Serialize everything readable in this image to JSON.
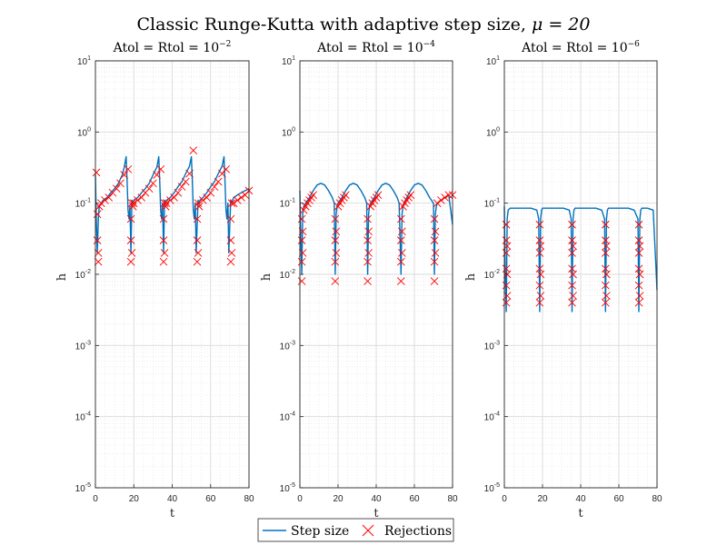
{
  "figure": {
    "title_text": "Classic Runge-Kutta with adaptive step size, ",
    "title_math": "μ = 20",
    "legend": {
      "line_label": "Step size",
      "marker_label": "Rejections"
    }
  },
  "colors": {
    "line": "#0072bd",
    "marker": "#ff0000",
    "grid": "#d9d9d9",
    "axis": "#262626"
  },
  "chart_data": [
    {
      "type": "line",
      "title_text": "Atol = Rtol = 10",
      "title_exp": "−2",
      "xlabel": "t",
      "ylabel": "h",
      "xlim": [
        0,
        80
      ],
      "ylim": [
        1e-05,
        10
      ],
      "yscale": "log",
      "grid": "on",
      "xticks": [
        "0",
        "20",
        "40",
        "60",
        "80"
      ],
      "yticks_exp": [
        "-5",
        "-4",
        "-3",
        "-2",
        "-1",
        "0",
        "1"
      ],
      "cycle_starts": [
        1,
        18.5,
        35.5,
        53,
        70.5
      ],
      "series": [
        {
          "name": "Step size",
          "x": [
            0,
            0.5,
            1,
            1.5,
            2,
            3,
            4,
            6,
            8,
            10,
            12,
            14,
            15,
            16,
            16.5,
            17,
            17.5,
            18,
            18.5,
            19,
            19.5,
            20,
            22,
            24,
            26,
            28,
            30,
            32,
            33,
            33.5,
            34,
            34.5,
            35,
            35.5,
            36,
            36.5,
            37,
            39,
            41,
            43,
            45,
            47,
            49,
            50,
            50.5,
            51,
            51.5,
            52,
            52.5,
            53,
            53.5,
            54,
            54.5,
            56,
            58,
            60,
            62,
            64,
            66,
            67,
            67.5,
            68,
            68.5,
            69,
            69.5,
            70,
            70.5,
            71,
            71.5,
            72,
            74,
            76,
            78,
            80
          ],
          "y": [
            0.25,
            0.05,
            0.02,
            0.06,
            0.09,
            0.1,
            0.11,
            0.12,
            0.14,
            0.16,
            0.19,
            0.25,
            0.32,
            0.45,
            0.2,
            0.08,
            0.06,
            0.09,
            0.02,
            0.11,
            0.1,
            0.11,
            0.12,
            0.14,
            0.16,
            0.19,
            0.25,
            0.32,
            0.45,
            0.2,
            0.08,
            0.06,
            0.1,
            0.02,
            0.11,
            0.1,
            0.11,
            0.12,
            0.14,
            0.17,
            0.2,
            0.26,
            0.33,
            0.45,
            0.2,
            0.08,
            0.06,
            0.1,
            0.02,
            0.05,
            0.11,
            0.1,
            0.11,
            0.12,
            0.14,
            0.17,
            0.2,
            0.26,
            0.33,
            0.45,
            0.2,
            0.08,
            0.06,
            0.1,
            0.02,
            0.05,
            0.11,
            0.1,
            0.11,
            0.12,
            0.13,
            0.14,
            0.15,
            0.16
          ]
        },
        {
          "name": "Rejections",
          "x": [
            0.5,
            1,
            1,
            1.5,
            1.5,
            2,
            3,
            5,
            7,
            9,
            11,
            13,
            15,
            17,
            18.5,
            18.5,
            18.5,
            19,
            19,
            19.5,
            20,
            22,
            24,
            26,
            28,
            30,
            32,
            34,
            35.5,
            35.5,
            35.5,
            36,
            36,
            36.5,
            37,
            39,
            41,
            43,
            45,
            47,
            49,
            51,
            53,
            53,
            53,
            53.5,
            53.5,
            54,
            56,
            58,
            60,
            62,
            64,
            66,
            68,
            70.5,
            70.5,
            70.5,
            71,
            71,
            72,
            74,
            76,
            78,
            80
          ],
          "y": [
            0.27,
            0.07,
            0.03,
            0.02,
            0.015,
            0.09,
            0.1,
            0.11,
            0.12,
            0.14,
            0.16,
            0.19,
            0.25,
            0.3,
            0.06,
            0.03,
            0.015,
            0.1,
            0.02,
            0.09,
            0.1,
            0.11,
            0.12,
            0.14,
            0.16,
            0.19,
            0.25,
            0.3,
            0.06,
            0.03,
            0.015,
            0.1,
            0.02,
            0.09,
            0.1,
            0.11,
            0.12,
            0.14,
            0.17,
            0.2,
            0.26,
            0.55,
            0.06,
            0.03,
            0.015,
            0.1,
            0.02,
            0.09,
            0.11,
            0.12,
            0.14,
            0.17,
            0.2,
            0.26,
            0.3,
            0.06,
            0.03,
            0.015,
            0.1,
            0.02,
            0.1,
            0.11,
            0.12,
            0.13,
            0.15
          ]
        }
      ]
    },
    {
      "type": "line",
      "title_text": "Atol = Rtol = 10",
      "title_exp": "−4",
      "xlabel": "t",
      "ylabel": "h",
      "xlim": [
        0,
        80
      ],
      "ylim": [
        1e-05,
        10
      ],
      "yscale": "log",
      "grid": "on",
      "xticks": [
        "0",
        "20",
        "40",
        "60",
        "80"
      ],
      "yticks_exp": [
        "-5",
        "-4",
        "-3",
        "-2",
        "-1",
        "0",
        "1"
      ],
      "cycle_starts": [
        1,
        18.5,
        35.5,
        53,
        70.5
      ],
      "series": [
        {
          "name": "Step size",
          "x": [
            0,
            0.5,
            1,
            1.5,
            2,
            3,
            5,
            7,
            9,
            11,
            13,
            15,
            17,
            18,
            18.5,
            19,
            19.5,
            20,
            22,
            24,
            26,
            28,
            30,
            32,
            34,
            35,
            35.5,
            36,
            36.5,
            37,
            39,
            41,
            43,
            45,
            47,
            49,
            51,
            52,
            53,
            53.5,
            54,
            54.5,
            56,
            58,
            60,
            62,
            64,
            66,
            68,
            70,
            70.5,
            71,
            71.5,
            72,
            74,
            76,
            78,
            80
          ],
          "y": [
            0.15,
            0.03,
            0.01,
            0.07,
            0.09,
            0.1,
            0.12,
            0.15,
            0.18,
            0.19,
            0.18,
            0.15,
            0.12,
            0.1,
            0.01,
            0.07,
            0.09,
            0.1,
            0.12,
            0.15,
            0.18,
            0.19,
            0.18,
            0.15,
            0.12,
            0.1,
            0.01,
            0.07,
            0.09,
            0.1,
            0.12,
            0.15,
            0.18,
            0.19,
            0.18,
            0.15,
            0.12,
            0.1,
            0.01,
            0.07,
            0.09,
            0.1,
            0.12,
            0.15,
            0.18,
            0.19,
            0.18,
            0.15,
            0.12,
            0.1,
            0.01,
            0.07,
            0.09,
            0.1,
            0.11,
            0.12,
            0.13,
            0.05
          ]
        },
        {
          "name": "Rejections",
          "x": [
            1,
            1,
            1,
            1,
            1.5,
            1.5,
            2,
            3,
            4,
            5,
            6,
            7,
            18.5,
            18.5,
            18.5,
            18.5,
            19,
            19,
            20,
            21,
            22,
            23,
            24,
            35.5,
            35.5,
            35.5,
            35.5,
            36,
            36,
            37,
            38,
            39,
            40,
            41,
            53,
            53,
            53,
            53,
            53.5,
            53.5,
            54,
            55,
            56,
            57,
            58,
            70.5,
            70.5,
            70.5,
            70.5,
            71,
            71,
            72,
            74,
            76,
            78,
            80
          ],
          "y": [
            0.06,
            0.03,
            0.015,
            0.008,
            0.04,
            0.02,
            0.08,
            0.09,
            0.1,
            0.11,
            0.12,
            0.13,
            0.06,
            0.03,
            0.015,
            0.008,
            0.04,
            0.02,
            0.09,
            0.1,
            0.11,
            0.12,
            0.13,
            0.06,
            0.03,
            0.015,
            0.008,
            0.04,
            0.02,
            0.09,
            0.1,
            0.11,
            0.12,
            0.13,
            0.06,
            0.03,
            0.015,
            0.008,
            0.04,
            0.02,
            0.09,
            0.1,
            0.11,
            0.12,
            0.13,
            0.06,
            0.03,
            0.015,
            0.008,
            0.04,
            0.02,
            0.1,
            0.11,
            0.12,
            0.13,
            0.13
          ]
        }
      ]
    },
    {
      "type": "line",
      "title_text": "Atol = Rtol = 10",
      "title_exp": "−6",
      "xlabel": "t",
      "ylabel": "h",
      "xlim": [
        0,
        80
      ],
      "ylim": [
        1e-05,
        10
      ],
      "yscale": "log",
      "grid": "on",
      "xticks": [
        "0",
        "20",
        "40",
        "60",
        "80"
      ],
      "yticks_exp": [
        "-5",
        "-4",
        "-3",
        "-2",
        "-1",
        "0",
        "1"
      ],
      "cycle_starts": [
        1,
        18.5,
        35.5,
        53,
        70.5
      ],
      "series": [
        {
          "name": "Step size",
          "x": [
            0,
            0.5,
            1,
            1.5,
            2,
            3,
            6,
            10,
            14,
            17,
            18,
            18.5,
            19,
            19.5,
            20,
            23,
            27,
            31,
            34,
            35,
            35.5,
            36,
            36.5,
            37,
            40,
            44,
            48,
            51,
            52.5,
            53,
            53.5,
            54,
            54.5,
            57,
            61,
            65,
            68,
            70,
            70.5,
            71,
            71.5,
            72,
            75,
            78,
            80
          ],
          "y": [
            0.09,
            0.01,
            0.003,
            0.06,
            0.08,
            0.085,
            0.085,
            0.085,
            0.085,
            0.08,
            0.06,
            0.003,
            0.06,
            0.08,
            0.085,
            0.085,
            0.085,
            0.085,
            0.08,
            0.06,
            0.003,
            0.06,
            0.08,
            0.085,
            0.085,
            0.085,
            0.085,
            0.08,
            0.06,
            0.003,
            0.06,
            0.08,
            0.085,
            0.085,
            0.085,
            0.085,
            0.08,
            0.06,
            0.003,
            0.06,
            0.08,
            0.085,
            0.085,
            0.08,
            0.006
          ]
        },
        {
          "name": "Rejections",
          "x": [
            1,
            1,
            1,
            1,
            1,
            1,
            1.5,
            1.5,
            1.5,
            18.5,
            18.5,
            18.5,
            18.5,
            18.5,
            18.5,
            19,
            19,
            19,
            35.5,
            35.5,
            35.5,
            35.5,
            35.5,
            35.5,
            36,
            36,
            36,
            53,
            53,
            53,
            53,
            53,
            53,
            53.5,
            53.5,
            53.5,
            70.5,
            70.5,
            70.5,
            70.5,
            70.5,
            70.5,
            71,
            71,
            71
          ],
          "y": [
            0.05,
            0.03,
            0.02,
            0.012,
            0.007,
            0.004,
            0.025,
            0.01,
            0.005,
            0.05,
            0.03,
            0.02,
            0.012,
            0.007,
            0.004,
            0.025,
            0.01,
            0.005,
            0.05,
            0.03,
            0.02,
            0.012,
            0.007,
            0.004,
            0.025,
            0.01,
            0.005,
            0.05,
            0.03,
            0.02,
            0.012,
            0.007,
            0.004,
            0.025,
            0.01,
            0.005,
            0.05,
            0.03,
            0.02,
            0.012,
            0.007,
            0.004,
            0.025,
            0.01,
            0.005
          ]
        }
      ]
    }
  ]
}
